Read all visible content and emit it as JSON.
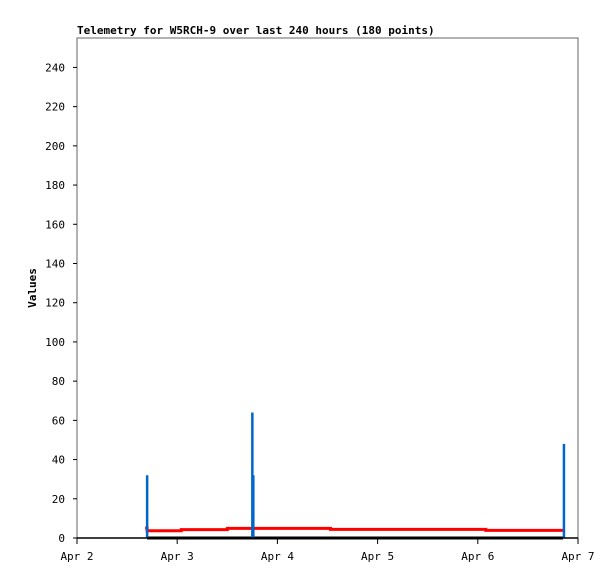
{
  "chart_data": {
    "type": "line",
    "title": "Telemetry for W5RCH-9 over last 240 hours (180 points)",
    "xlabel": "",
    "ylabel": "Values",
    "xlim": [
      "04-02 00:00",
      "04-07 00:00"
    ],
    "ylim": [
      0,
      255
    ],
    "x_ticks": [
      {
        "label": "Apr 2",
        "t": "04-02 00:00"
      },
      {
        "label": "Apr 3",
        "t": "04-03 00:00"
      },
      {
        "label": "Apr 4",
        "t": "04-04 00:00"
      },
      {
        "label": "Apr 5",
        "t": "04-05 00:00"
      },
      {
        "label": "Apr 6",
        "t": "04-06 00:00"
      },
      {
        "label": "Apr 7",
        "t": "04-07 00:00"
      }
    ],
    "y_ticks": [
      0,
      20,
      40,
      60,
      80,
      100,
      120,
      140,
      160,
      180,
      200,
      220,
      240
    ],
    "grid": false,
    "series": [
      {
        "color": "#ff0000",
        "style": "step",
        "points": [
          [
            "04-02 16:19",
            5.1
          ],
          [
            "04-02 16:48",
            3.7
          ],
          [
            "04-03 00:58",
            4.3
          ],
          [
            "04-03 12:00",
            4.9
          ],
          [
            "04-04 12:43",
            4.4
          ],
          [
            "04-06 01:55",
            3.9
          ],
          [
            "04-06 20:24",
            3.9
          ]
        ]
      },
      {
        "color": "#000000",
        "style": "line",
        "points": [
          [
            "04-02 16:48",
            0
          ],
          [
            "04-06 20:24",
            0
          ]
        ]
      },
      {
        "color": "#0066cc",
        "style": "spike",
        "points": [
          [
            "04-02 16:48",
            32
          ],
          [
            "04-03 18:00",
            64
          ],
          [
            "04-03 18:14",
            32
          ],
          [
            "04-06 20:38",
            48
          ]
        ]
      }
    ]
  }
}
